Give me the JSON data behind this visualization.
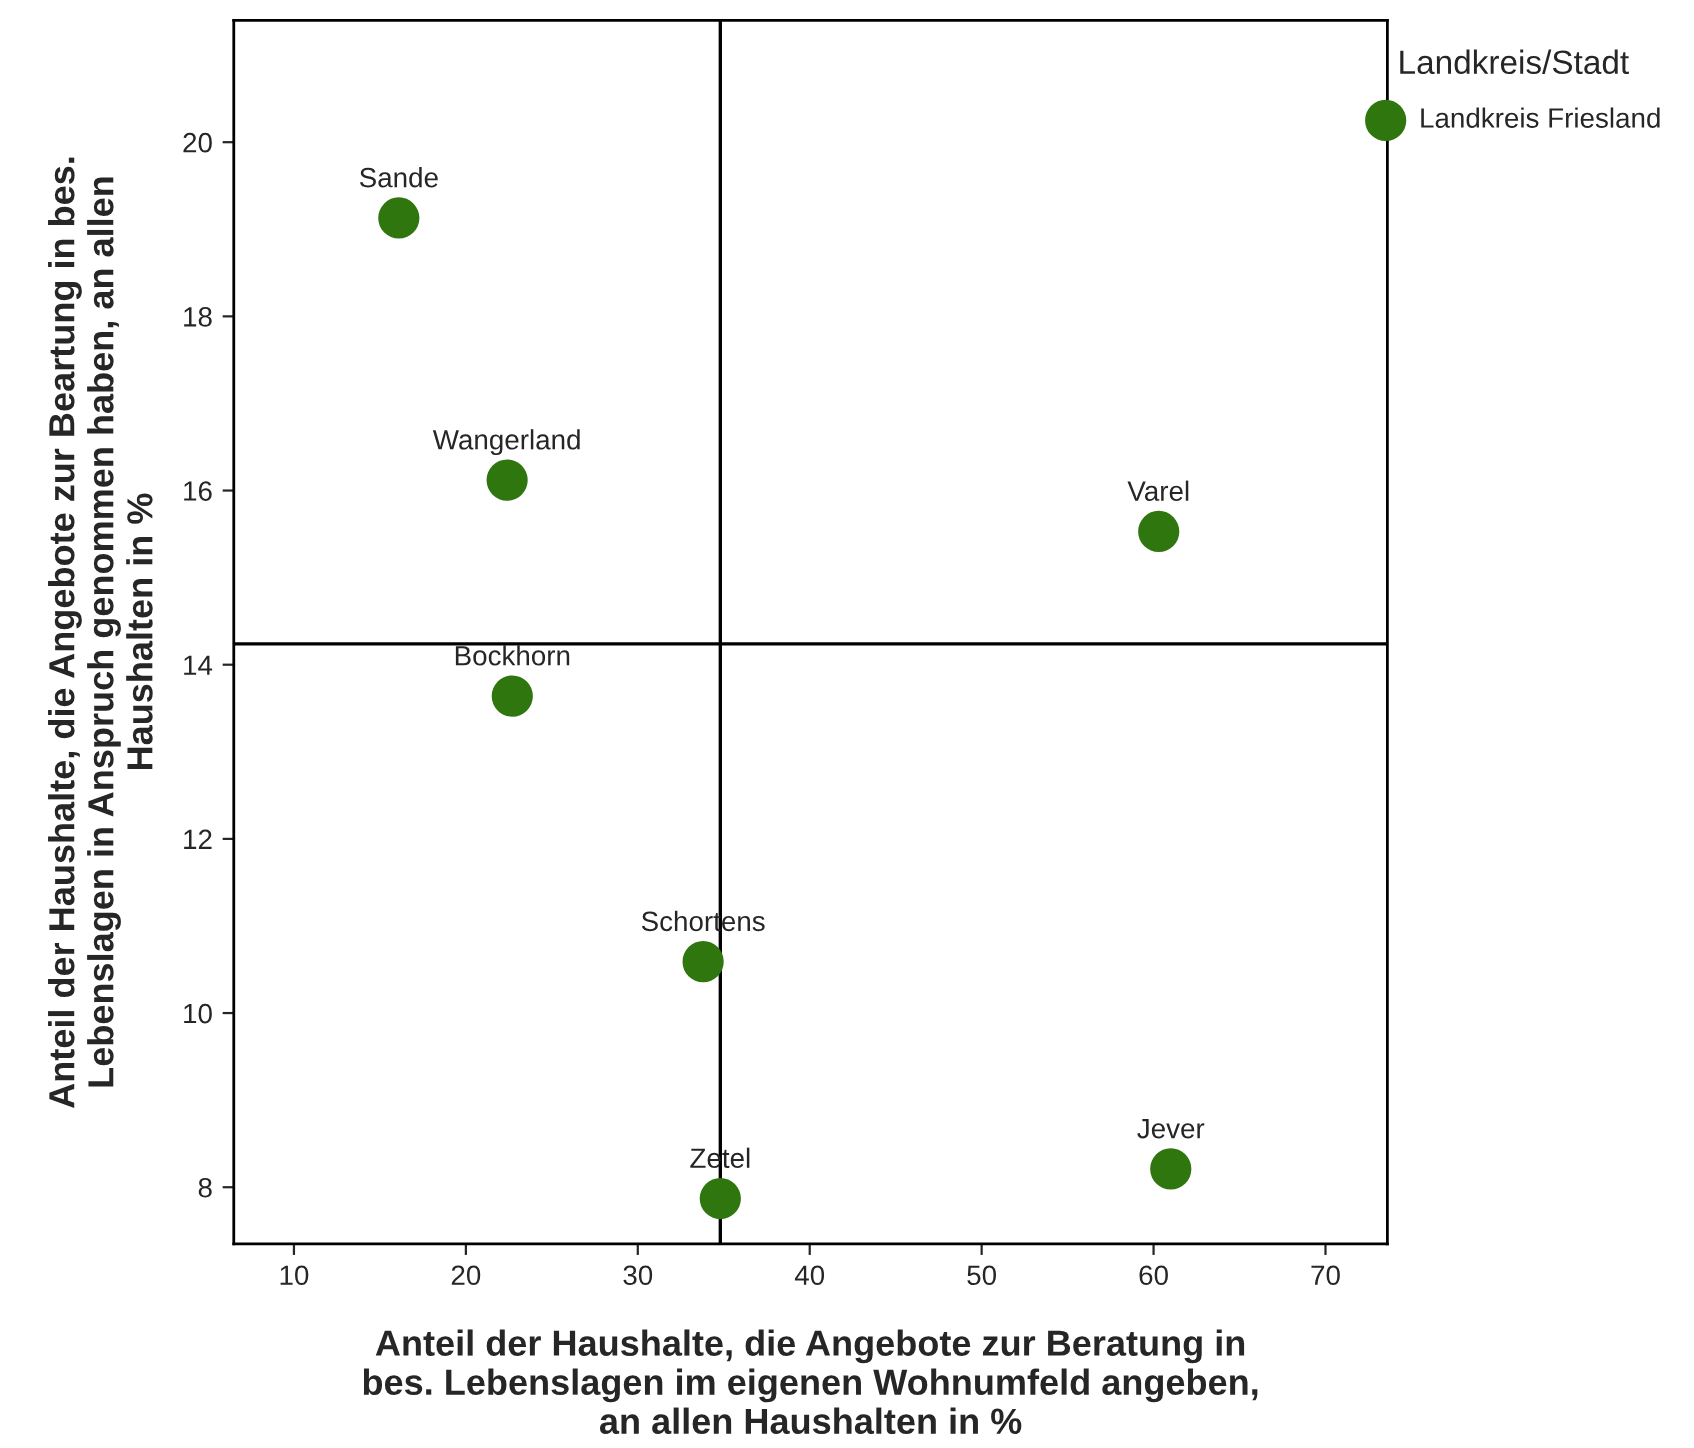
{
  "chart_data": {
    "type": "scatter",
    "xlabel": "Anteil der Haushalte, die Angebote zur Beratung in\nbes. Lebenslagen im eigenen Wohnumfeld angeben,\nan allen Haushalten in %",
    "ylabel": "Anteil der Haushalte, die Angebote zur Beartung in bes.\nLebenslagen in Anspruch genommen haben, an allen\nHaushalten in %",
    "annotations": [
      "Landkreis/Stadt"
    ],
    "series": [
      {
        "color": "#2f760f",
        "x": [
          16.1,
          22.4,
          60.3,
          22.7,
          33.8,
          34.8,
          61.0,
          73.5
        ],
        "values": [
          19.13,
          16.12,
          15.53,
          13.64,
          10.59,
          7.87,
          8.21,
          20.25
        ],
        "value_labels": [
          "Sande",
          "Wangerland",
          "Varel",
          "Bockhorn",
          "Schortens",
          "Zetel",
          "Jever",
          "Landkreis Friesland"
        ]
      }
    ],
    "ref_lines": [
      {
        "axis": "x",
        "value": 34.8,
        "color": "#000000"
      },
      {
        "axis": "y",
        "value": 14.24,
        "color": "#000000"
      }
    ],
    "xlim": [
      6.5,
      73.6
    ],
    "ylim": [
      7.35,
      21.4
    ],
    "xticks": [
      10,
      20,
      30,
      40,
      50,
      60,
      70
    ],
    "yticks": [
      8,
      10,
      12,
      14,
      16,
      18,
      20
    ],
    "marker": "circle",
    "grid": false,
    "legend": false
  }
}
